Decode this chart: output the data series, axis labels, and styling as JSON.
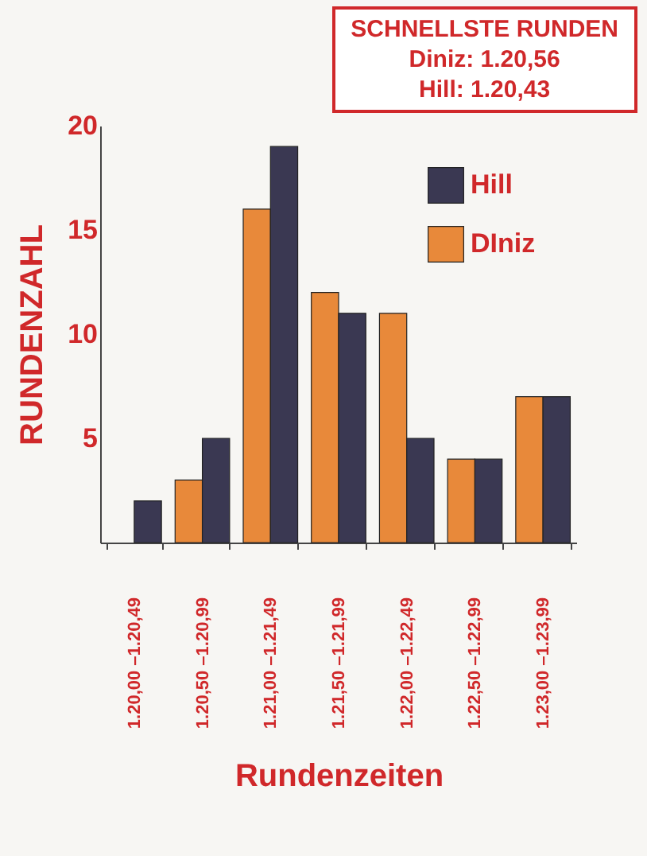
{
  "chart_data": {
    "type": "bar",
    "title": "SCHNELLSTE RUNDEN",
    "annotations": [
      "Diniz: 1.20,56",
      "Hill: 1.20,43"
    ],
    "xlabel": "Rundenzeiten",
    "ylabel": "RUNDENZAHL",
    "categories": [
      "1.20,00 –1.20,49",
      "1.20,50 –1.20,99",
      "1.21,00 –1.21,49",
      "1.21,50 –1.21,99",
      "1.22,00 –1.22,49",
      "1.22,50 –1.22,99",
      "1.23,00 –1.23,99"
    ],
    "series": [
      {
        "name": "DIniz",
        "color": "#e8893a",
        "values": [
          null,
          3,
          16,
          12,
          11,
          4,
          7
        ]
      },
      {
        "name": "Hill",
        "color": "#3a3852",
        "values": [
          2,
          5,
          19,
          11,
          5,
          4,
          7
        ]
      }
    ],
    "ylim": [
      0,
      20
    ],
    "yticks": [
      5,
      10,
      15,
      20
    ],
    "grid": false,
    "legend": "top right"
  }
}
